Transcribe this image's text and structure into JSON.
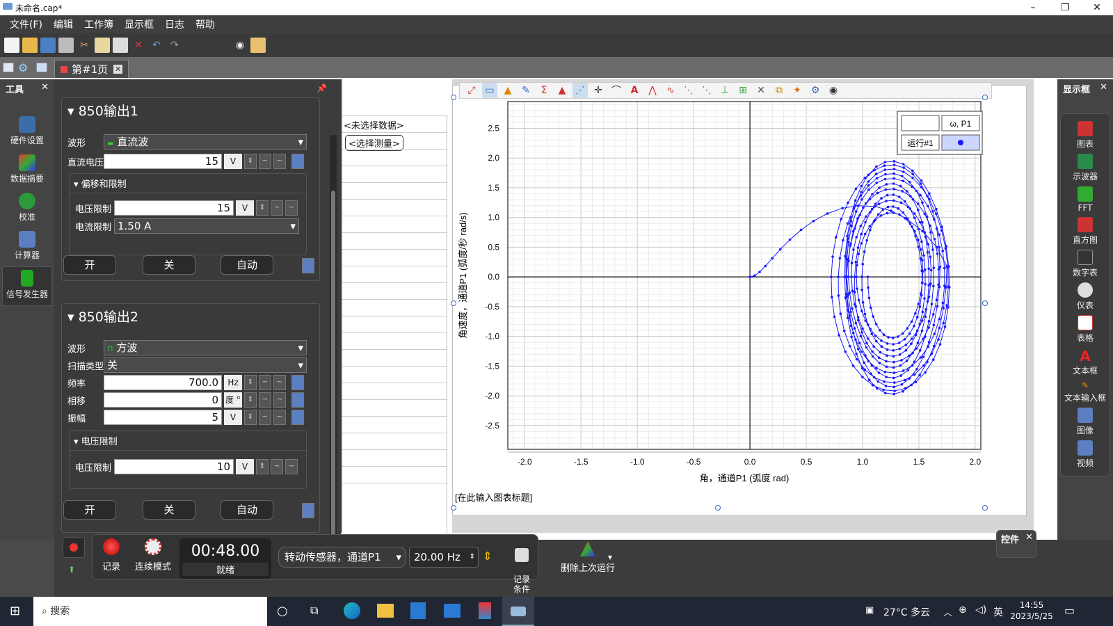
{
  "window": {
    "title": "未命名.cap*",
    "min": "–",
    "max": "❐",
    "close": "✕"
  },
  "menu": [
    "文件(F)",
    "编辑",
    "工作簿",
    "显示框",
    "日志",
    "帮助"
  ],
  "tab": {
    "label": "第#1页",
    "close": "✕"
  },
  "tools_panel": {
    "title": "工具",
    "close": "✕",
    "items": [
      "硬件设置",
      "数据摘要",
      "校准",
      "计算器",
      "信号发生器"
    ]
  },
  "output1": {
    "title": "850输出1",
    "waveform_label": "波形",
    "waveform": "直流波",
    "dc_label": "直流电压",
    "dc_value": "15",
    "dc_unit": "V",
    "sub_title": "偏移和限制",
    "vlimit_label": "电压限制",
    "vlimit_value": "15",
    "vlimit_unit": "V",
    "ilimit_label": "电流限制",
    "ilimit_value": "1.50 A",
    "on": "开",
    "off": "关",
    "auto": "自动"
  },
  "output2": {
    "title": "850输出2",
    "waveform_label": "波形",
    "waveform": "方波",
    "sweep_label": "扫描类型",
    "sweep": "关",
    "freq_label": "频率",
    "freq_value": "700.0",
    "freq_unit": "Hz",
    "phase_label": "相移",
    "phase_value": "0",
    "phase_unit": "度 °",
    "amp_label": "振幅",
    "amp_value": "5",
    "amp_unit": "V",
    "sub_title": "电压限制",
    "vlimit_label": "电压限制",
    "vlimit_value": "10",
    "vlimit_unit": "V",
    "on": "开",
    "off": "关",
    "auto": "自动"
  },
  "data_table": {
    "no_data": "<未选择数据>",
    "select_measure": "<选择测量>"
  },
  "chart_data": {
    "type": "scatter",
    "xlabel": "角，通道P1 (弧度 rad)",
    "ylabel": "角速度，通道P1 (弧度/秒 rad/s)",
    "xlim": [
      -2.15,
      2.05
    ],
    "ylim": [
      -2.9,
      2.95
    ],
    "xticks": [
      "-2.0",
      "-1.5",
      "-1.0",
      "-0.5",
      "0.0",
      "0.5",
      "1.0",
      "1.5",
      "2.0"
    ],
    "yticks": [
      "2.5",
      "2.0",
      "1.5",
      "1.0",
      "0.5",
      "0.0",
      "-0.5",
      "-1.0",
      "-1.5",
      "-2.0",
      "-2.5"
    ],
    "legend": {
      "header": "ω, P1",
      "run": "运行#1",
      "color": "#1a1aff"
    },
    "caption": "[在此输入图表标题]",
    "series": [
      {
        "type": "spiral",
        "start": [
          0.0,
          0.0
        ],
        "center": [
          1.26,
          0.0
        ],
        "rx_outer": 0.5,
        "ry_outer": 2.0,
        "rx_inner": 0.25,
        "ry_inner": 1.0,
        "turns": 12
      }
    ]
  },
  "display_panel": {
    "title": "显示框",
    "close": "✕",
    "items": [
      "图表",
      "示波器",
      "FFT",
      "直方图",
      "数字表",
      "仪表",
      "表格",
      "文本框",
      "文本输入框",
      "图像",
      "视频"
    ]
  },
  "controls_panel": {
    "title": "控件",
    "close": "✕"
  },
  "bottom": {
    "record": "记录",
    "mode": "连续模式",
    "timer": "00:48.00",
    "status": "就绪",
    "sensor": "转动传感器，通道P1",
    "rate": "20.00 Hz",
    "record_cond": "记录\n条件",
    "delete_last": "删除上次运行"
  },
  "taskbar": {
    "search": "搜索",
    "weather": "27°C 多云",
    "lang": "英",
    "time": "14:55",
    "date": "2023/5/25"
  }
}
